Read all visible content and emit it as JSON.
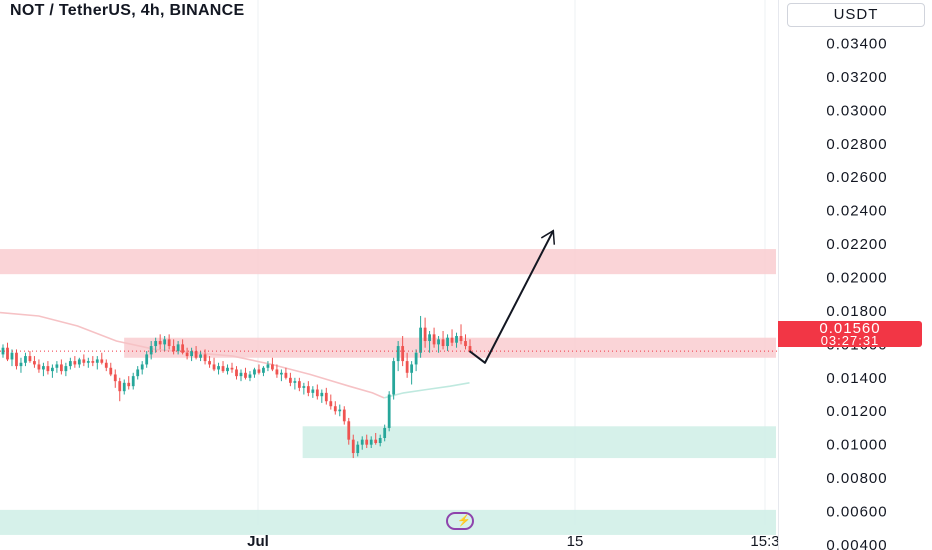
{
  "header": {
    "title": "NOT / TetherUS, 4h, BINANCE",
    "currency": "USDT"
  },
  "price_tag": {
    "price": "0.01560",
    "countdown": "03:27:31"
  },
  "colors": {
    "up": "#26a69a",
    "down": "#ef5350",
    "resistance_zone": "#f9cdd0",
    "support_zone": "#cfeee6",
    "price_line": "#f23645",
    "projection": "#131722",
    "logo": "#8e44ad"
  },
  "logo_icon": "lightning-bolt-icon",
  "chart_data": {
    "type": "candlestick",
    "y_ticks": [
      "0.03400",
      "0.03200",
      "0.03000",
      "0.02800",
      "0.02600",
      "0.02400",
      "0.02200",
      "0.02000",
      "0.01800",
      "0.01600",
      "0.01400",
      "0.01200",
      "0.01000",
      "0.00800",
      "0.00600",
      "0.00400"
    ],
    "ylim": [
      0.0037,
      0.0366
    ],
    "x_ticks": [
      "Jul",
      "15",
      "15:3"
    ],
    "current_price": 0.0156,
    "zones": [
      {
        "kind": "resistance",
        "from": 0.0202,
        "to": 0.0217,
        "x_start": 0,
        "x_end": 1
      },
      {
        "kind": "resistance",
        "from": 0.0152,
        "to": 0.0164,
        "x_start": 0.16,
        "x_end": 1
      },
      {
        "kind": "support",
        "from": 0.0092,
        "to": 0.0111,
        "x_start": 0.39,
        "x_end": 1
      },
      {
        "kind": "support",
        "from": 0.0046,
        "to": 0.0061,
        "x_start": 0,
        "x_end": 1
      }
    ],
    "projection": [
      {
        "x": 0.605,
        "y": 0.0156
      },
      {
        "x": 0.625,
        "y": 0.0149
      },
      {
        "x": 0.713,
        "y": 0.0228
      }
    ],
    "moving_average": [
      {
        "x": 0.0,
        "y": 0.0179
      },
      {
        "x": 0.05,
        "y": 0.0177
      },
      {
        "x": 0.1,
        "y": 0.0171
      },
      {
        "x": 0.15,
        "y": 0.0162
      },
      {
        "x": 0.2,
        "y": 0.0157
      },
      {
        "x": 0.25,
        "y": 0.0155
      },
      {
        "x": 0.3,
        "y": 0.0153
      },
      {
        "x": 0.35,
        "y": 0.0148
      },
      {
        "x": 0.4,
        "y": 0.0142
      },
      {
        "x": 0.45,
        "y": 0.0135
      },
      {
        "x": 0.48,
        "y": 0.0131
      },
      {
        "x": 0.495,
        "y": 0.0128
      },
      {
        "x": 0.52,
        "y": 0.0131
      },
      {
        "x": 0.55,
        "y": 0.0133
      },
      {
        "x": 0.58,
        "y": 0.0135
      },
      {
        "x": 0.605,
        "y": 0.0137
      }
    ],
    "ma_split_x": 0.495,
    "candles": [
      [
        0.0154,
        0.016,
        0.0152,
        0.0158
      ],
      [
        0.0158,
        0.0161,
        0.015,
        0.0151
      ],
      [
        0.0151,
        0.0157,
        0.0147,
        0.0155
      ],
      [
        0.0155,
        0.0157,
        0.0145,
        0.0147
      ],
      [
        0.0147,
        0.0152,
        0.0143,
        0.0149
      ],
      [
        0.0149,
        0.0155,
        0.0147,
        0.0153
      ],
      [
        0.0153,
        0.0156,
        0.0149,
        0.015
      ],
      [
        0.015,
        0.0153,
        0.0146,
        0.0148
      ],
      [
        0.0148,
        0.0151,
        0.0143,
        0.0145
      ],
      [
        0.0145,
        0.0149,
        0.0141,
        0.0147
      ],
      [
        0.0147,
        0.015,
        0.0142,
        0.0144
      ],
      [
        0.0144,
        0.0148,
        0.014,
        0.0146
      ],
      [
        0.0146,
        0.015,
        0.0143,
        0.0148
      ],
      [
        0.0148,
        0.0151,
        0.0142,
        0.0144
      ],
      [
        0.0144,
        0.0149,
        0.0141,
        0.0147
      ],
      [
        0.0147,
        0.0152,
        0.0145,
        0.015
      ],
      [
        0.015,
        0.0153,
        0.0146,
        0.0148
      ],
      [
        0.0148,
        0.0152,
        0.0146,
        0.0151
      ],
      [
        0.0151,
        0.0154,
        0.0147,
        0.0149
      ],
      [
        0.0149,
        0.0152,
        0.0146,
        0.015
      ],
      [
        0.015,
        0.0153,
        0.0147,
        0.0149
      ],
      [
        0.0149,
        0.0153,
        0.0145,
        0.0151
      ],
      [
        0.0151,
        0.0155,
        0.0148,
        0.0149
      ],
      [
        0.0149,
        0.0151,
        0.0144,
        0.0146
      ],
      [
        0.0146,
        0.0149,
        0.0141,
        0.0142
      ],
      [
        0.0142,
        0.0145,
        0.0134,
        0.0138
      ],
      [
        0.0138,
        0.014,
        0.0126,
        0.0132
      ],
      [
        0.0132,
        0.0139,
        0.013,
        0.0137
      ],
      [
        0.0137,
        0.0141,
        0.0133,
        0.0135
      ],
      [
        0.0135,
        0.0143,
        0.0133,
        0.0141
      ],
      [
        0.0141,
        0.0147,
        0.0139,
        0.0145
      ],
      [
        0.0145,
        0.015,
        0.0142,
        0.0148
      ],
      [
        0.0148,
        0.0156,
        0.0146,
        0.0154
      ],
      [
        0.0154,
        0.0162,
        0.0151,
        0.0159
      ],
      [
        0.0159,
        0.0164,
        0.0155,
        0.0162
      ],
      [
        0.0162,
        0.0166,
        0.0157,
        0.016
      ],
      [
        0.016,
        0.0165,
        0.0156,
        0.0163
      ],
      [
        0.0163,
        0.0166,
        0.0157,
        0.0159
      ],
      [
        0.0159,
        0.0163,
        0.0154,
        0.0156
      ],
      [
        0.0156,
        0.0162,
        0.0154,
        0.016
      ],
      [
        0.016,
        0.0163,
        0.0154,
        0.0155
      ],
      [
        0.0155,
        0.0158,
        0.0151,
        0.0153
      ],
      [
        0.0153,
        0.0158,
        0.015,
        0.0156
      ],
      [
        0.0156,
        0.0159,
        0.0151,
        0.0152
      ],
      [
        0.0152,
        0.0156,
        0.015,
        0.0154
      ],
      [
        0.0154,
        0.0157,
        0.0148,
        0.015
      ],
      [
        0.015,
        0.0153,
        0.0146,
        0.0148
      ],
      [
        0.0148,
        0.0152,
        0.0144,
        0.0145
      ],
      [
        0.0145,
        0.0149,
        0.0142,
        0.0147
      ],
      [
        0.0147,
        0.015,
        0.0143,
        0.0144
      ],
      [
        0.0144,
        0.0148,
        0.0142,
        0.0146
      ],
      [
        0.0146,
        0.0149,
        0.0143,
        0.0145
      ],
      [
        0.0145,
        0.0147,
        0.0139,
        0.0141
      ],
      [
        0.0141,
        0.0145,
        0.0138,
        0.0143
      ],
      [
        0.0143,
        0.0146,
        0.0139,
        0.014
      ],
      [
        0.014,
        0.0144,
        0.0138,
        0.0142
      ],
      [
        0.0142,
        0.0146,
        0.014,
        0.0145
      ],
      [
        0.0145,
        0.0148,
        0.0142,
        0.0143
      ],
      [
        0.0143,
        0.0147,
        0.0141,
        0.0146
      ],
      [
        0.0146,
        0.015,
        0.0144,
        0.0148
      ],
      [
        0.0148,
        0.0152,
        0.0144,
        0.0145
      ],
      [
        0.0145,
        0.0148,
        0.014,
        0.0142
      ],
      [
        0.0142,
        0.0145,
        0.0138,
        0.0143
      ],
      [
        0.0143,
        0.0146,
        0.0139,
        0.014
      ],
      [
        0.014,
        0.0143,
        0.0135,
        0.0137
      ],
      [
        0.0137,
        0.014,
        0.0133,
        0.0138
      ],
      [
        0.0138,
        0.014,
        0.0132,
        0.0134
      ],
      [
        0.0134,
        0.0137,
        0.013,
        0.0135
      ],
      [
        0.0135,
        0.0138,
        0.0129,
        0.0131
      ],
      [
        0.0131,
        0.0135,
        0.0128,
        0.0133
      ],
      [
        0.0133,
        0.0136,
        0.0127,
        0.0129
      ],
      [
        0.0129,
        0.0133,
        0.0125,
        0.0131
      ],
      [
        0.0131,
        0.0134,
        0.0124,
        0.0126
      ],
      [
        0.0126,
        0.013,
        0.0121,
        0.0123
      ],
      [
        0.0123,
        0.0126,
        0.0118,
        0.012
      ],
      [
        0.012,
        0.0124,
        0.0117,
        0.0121
      ],
      [
        0.0121,
        0.0123,
        0.0112,
        0.0114
      ],
      [
        0.0114,
        0.0116,
        0.01,
        0.0103
      ],
      [
        0.0103,
        0.0106,
        0.0092,
        0.0095
      ],
      [
        0.0095,
        0.0102,
        0.0093,
        0.01
      ],
      [
        0.01,
        0.0105,
        0.0097,
        0.0103
      ],
      [
        0.0103,
        0.0106,
        0.0098,
        0.01
      ],
      [
        0.01,
        0.0105,
        0.0098,
        0.0103
      ],
      [
        0.0103,
        0.0107,
        0.01,
        0.0101
      ],
      [
        0.0101,
        0.0106,
        0.0099,
        0.0104
      ],
      [
        0.0104,
        0.0112,
        0.0102,
        0.011
      ],
      [
        0.011,
        0.0132,
        0.0108,
        0.013
      ],
      [
        0.013,
        0.0152,
        0.0127,
        0.015
      ],
      [
        0.015,
        0.0162,
        0.0144,
        0.0159
      ],
      [
        0.0159,
        0.0165,
        0.0147,
        0.015
      ],
      [
        0.015,
        0.0155,
        0.014,
        0.0143
      ],
      [
        0.0143,
        0.015,
        0.0136,
        0.0148
      ],
      [
        0.0148,
        0.0157,
        0.0144,
        0.0155
      ],
      [
        0.0155,
        0.0177,
        0.0152,
        0.017
      ],
      [
        0.017,
        0.0176,
        0.0158,
        0.0162
      ],
      [
        0.0162,
        0.0168,
        0.0155,
        0.0166
      ],
      [
        0.0166,
        0.017,
        0.0158,
        0.016
      ],
      [
        0.016,
        0.0165,
        0.0155,
        0.0163
      ],
      [
        0.0163,
        0.0168,
        0.0157,
        0.0159
      ],
      [
        0.0159,
        0.0166,
        0.0156,
        0.0164
      ],
      [
        0.0164,
        0.0169,
        0.0159,
        0.0161
      ],
      [
        0.0161,
        0.0167,
        0.0158,
        0.0165
      ],
      [
        0.0165,
        0.0172,
        0.016,
        0.0162
      ],
      [
        0.0162,
        0.0166,
        0.0157,
        0.0159
      ],
      [
        0.0159,
        0.0163,
        0.0155,
        0.0156
      ]
    ]
  }
}
